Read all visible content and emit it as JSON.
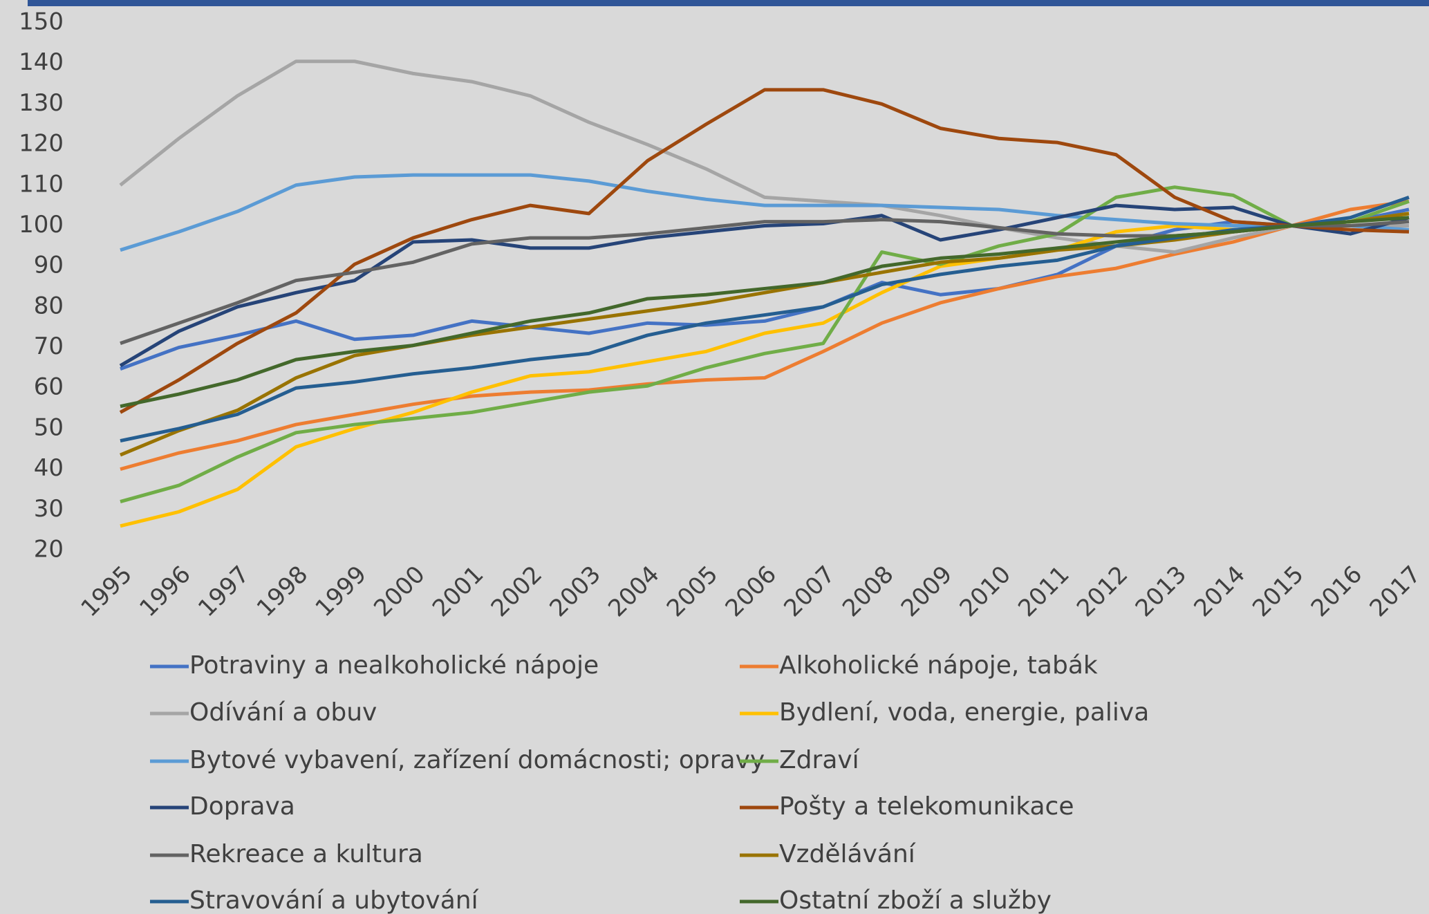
{
  "chart_data": {
    "type": "line",
    "categories": [
      "1995",
      "1996",
      "1997",
      "1998",
      "1999",
      "2000",
      "2001",
      "2002",
      "2003",
      "2004",
      "2005",
      "2006",
      "2007",
      "2008",
      "2009",
      "2010",
      "2011",
      "2012",
      "2013",
      "2014",
      "2015",
      "2016",
      "2017"
    ],
    "ylim": [
      20,
      150
    ],
    "yticks": [
      20,
      30,
      40,
      50,
      60,
      70,
      80,
      90,
      100,
      110,
      120,
      130,
      140,
      150
    ],
    "grid": false,
    "legend": "bottom",
    "series": [
      {
        "name": "Potraviny a nealkoholické nápoje",
        "color": "#4472c4",
        "values": [
          64.7,
          70,
          73,
          76.5,
          72,
          73,
          76.5,
          75,
          73.5,
          76,
          75.5,
          76.5,
          80,
          86,
          83,
          84.5,
          88,
          95,
          99,
          101,
          100,
          101,
          104
        ]
      },
      {
        "name": "Alkoholické nápoje, tabák",
        "color": "#ed7d31",
        "values": [
          40,
          44,
          47,
          51,
          53.5,
          56,
          58,
          59,
          59.5,
          61,
          62,
          62.5,
          69,
          76,
          81,
          84.5,
          87.5,
          89.5,
          93,
          96,
          100,
          104,
          106
        ]
      },
      {
        "name": "Odívání a obuv",
        "color": "#a5a5a5",
        "values": [
          110,
          121.5,
          132,
          140.5,
          140.5,
          137.5,
          135.5,
          132,
          125.5,
          120,
          114,
          107,
          106,
          105,
          102.5,
          99.5,
          97,
          95,
          93.5,
          97,
          100,
          100,
          100
        ]
      },
      {
        "name": "Bydlení, voda, energie, paliva",
        "color": "#ffc000",
        "values": [
          26,
          29.5,
          35,
          45.5,
          50,
          54,
          59,
          63,
          64,
          66.5,
          69,
          73.5,
          76,
          83.5,
          90,
          92,
          94,
          98.5,
          100,
          99,
          100,
          101,
          103
        ]
      },
      {
        "name": "Bytové vybavení, zařízení domácnosti; opravy",
        "color": "#5b9bd5",
        "values": [
          94,
          98.5,
          103.5,
          110,
          112,
          112.5,
          112.5,
          112.5,
          111,
          108.5,
          106.5,
          105,
          105,
          105,
          104.5,
          104,
          102.5,
          101.5,
          100.5,
          100,
          100,
          100,
          99
        ]
      },
      {
        "name": "Zdraví",
        "color": "#70ad47",
        "values": [
          32,
          36,
          43,
          49,
          51,
          52.5,
          54,
          56.5,
          59,
          60.5,
          65,
          68.5,
          71,
          93.5,
          90.5,
          95,
          98,
          107,
          109.5,
          107.5,
          100,
          101,
          106
        ]
      },
      {
        "name": "Doprava",
        "color": "#264478",
        "values": [
          65.5,
          74,
          80,
          83.5,
          86.5,
          96,
          96.5,
          94.5,
          94.5,
          97,
          98.5,
          100,
          100.5,
          102.5,
          96.5,
          99,
          102,
          105,
          104,
          104.5,
          100,
          98,
          102
        ]
      },
      {
        "name": "Pošty a telekomunikace",
        "color": "#9e480e",
        "values": [
          54,
          62,
          71,
          78.5,
          90.5,
          97,
          101.5,
          105,
          103,
          116,
          125,
          133.5,
          133.5,
          130,
          124,
          121.5,
          120.5,
          117.5,
          107,
          101,
          100,
          99,
          98.5
        ]
      },
      {
        "name": "Rekreace a kultura",
        "color": "#636363",
        "values": [
          71,
          76,
          81,
          86.5,
          88.5,
          91,
          95.5,
          97,
          97,
          98,
          99.5,
          101,
          101,
          101.5,
          101,
          99.5,
          98,
          97.5,
          97.5,
          98.5,
          100,
          100,
          101
        ]
      },
      {
        "name": "Vzdělávání",
        "color": "#997300",
        "values": [
          43.5,
          49.5,
          54.5,
          62.5,
          68,
          70.5,
          73,
          75,
          77,
          79,
          81,
          83.5,
          86,
          88.5,
          91,
          92,
          94,
          95,
          96.5,
          98.5,
          100,
          101,
          103
        ]
      },
      {
        "name": "Stravování a ubytování",
        "color": "#255e91",
        "values": [
          47,
          50,
          53.5,
          60,
          61.5,
          63.5,
          65,
          67,
          68.5,
          73,
          76,
          78,
          80,
          85.5,
          88,
          90,
          91.5,
          95,
          97,
          99,
          100,
          102,
          107
        ]
      },
      {
        "name": "Ostatní zboží a služby",
        "color": "#43682b",
        "values": [
          55.5,
          58.5,
          62,
          67,
          69,
          70.5,
          73.5,
          76.5,
          78.5,
          82,
          83,
          84.5,
          86,
          90,
          92,
          93,
          94.5,
          96,
          97.5,
          98.5,
          100,
          101,
          102
        ]
      }
    ]
  }
}
